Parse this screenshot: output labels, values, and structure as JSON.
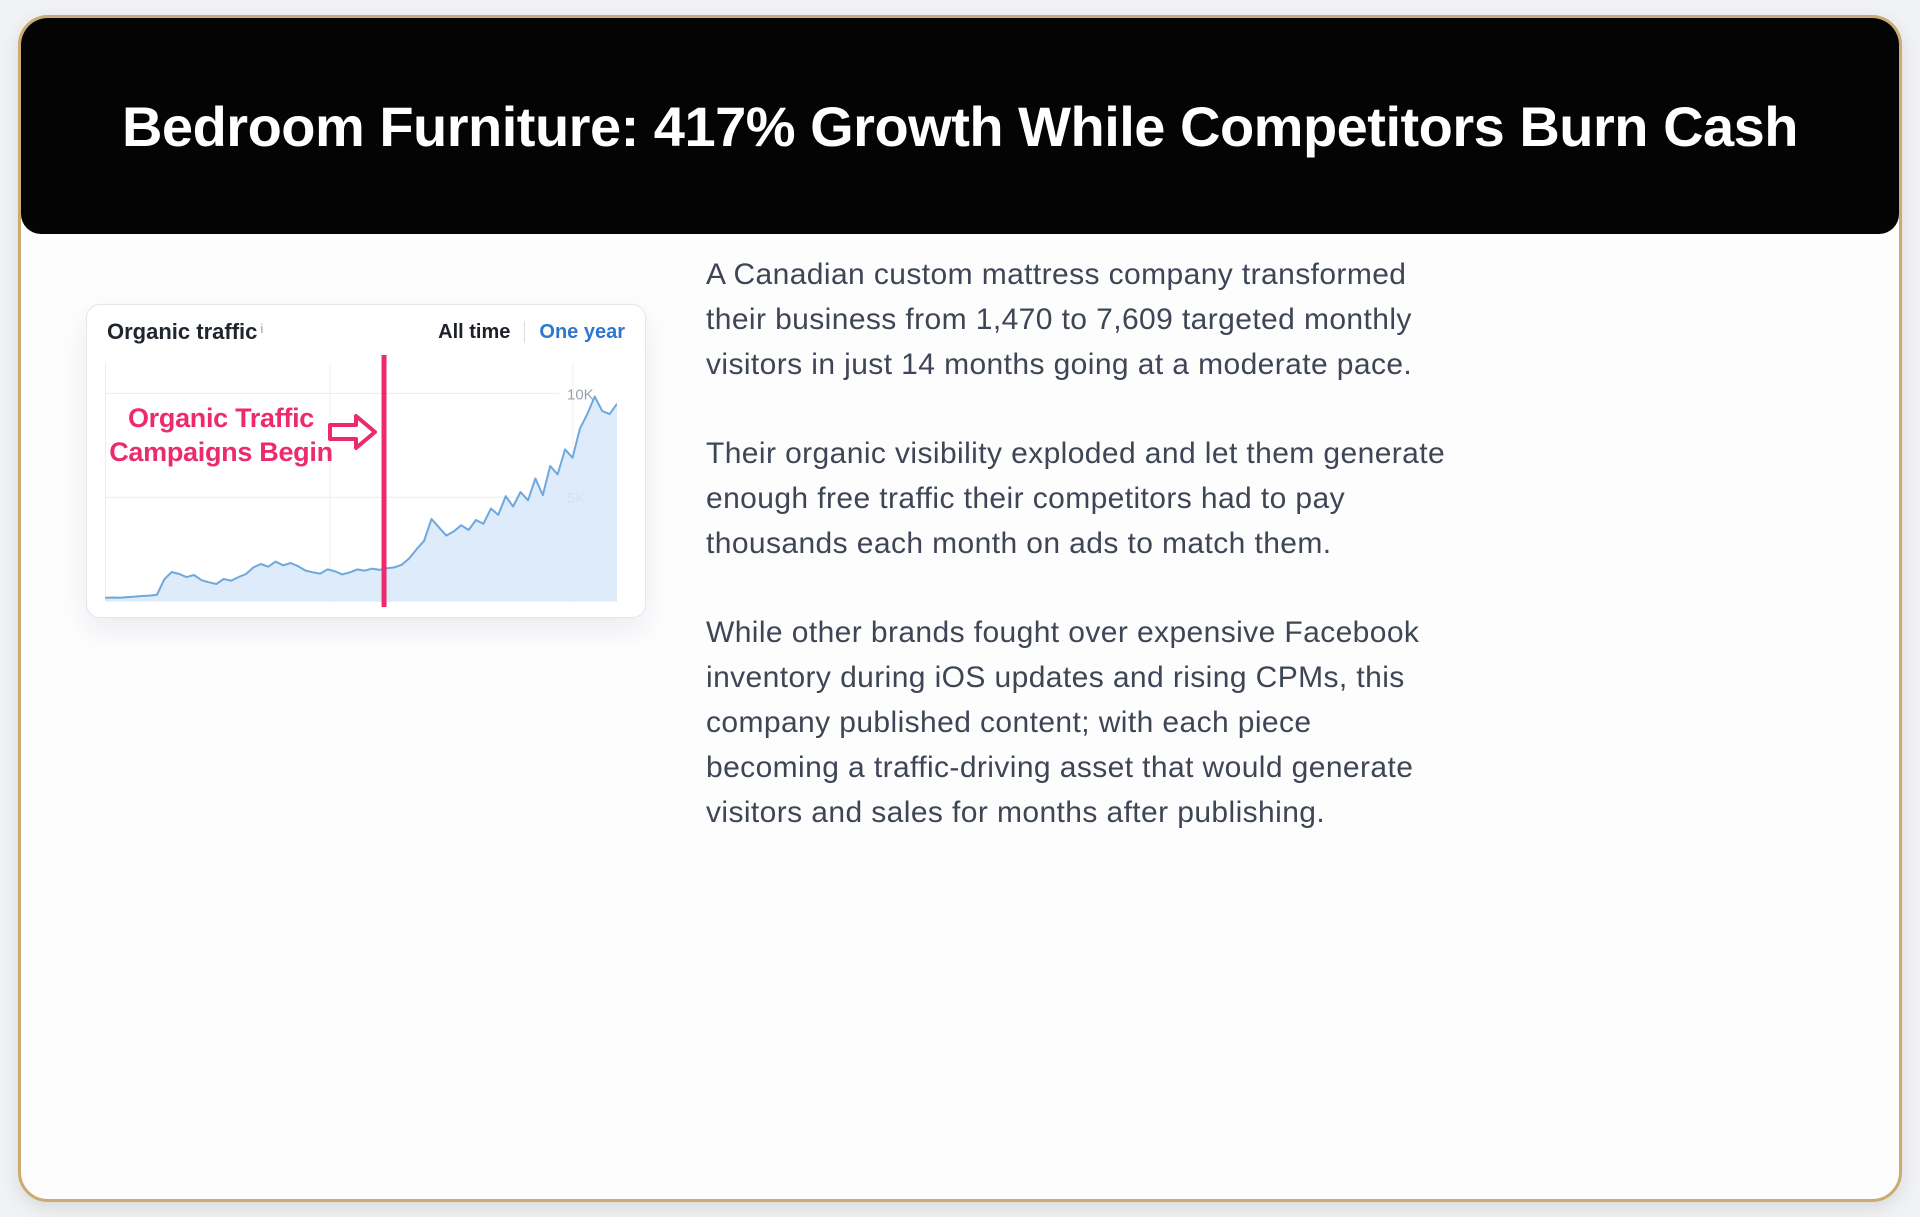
{
  "header": {
    "title": "Bedroom Furniture: 417% Growth While Competitors Burn Cash"
  },
  "chart_card": {
    "title": "Organic traffic",
    "info_icon": "i",
    "range_all_time": "All time",
    "range_one_year": "One year",
    "annotation_line1": "Organic Traffic",
    "annotation_line2": "Campaigns Begin"
  },
  "chart_data": {
    "type": "area",
    "title": "Organic traffic",
    "xlabel": "",
    "ylabel": "",
    "ylim": [
      0,
      10500
    ],
    "gridlines": [
      {
        "value": 10000,
        "label": "10K"
      },
      {
        "value": 5000,
        "label": "5K"
      }
    ],
    "legend_position": "none",
    "annotation": {
      "text": "Organic Traffic Campaigns Begin",
      "x_fraction": 0.545
    },
    "series": [
      {
        "name": "Organic traffic",
        "values": [
          150,
          170,
          160,
          190,
          210,
          240,
          260,
          300,
          1050,
          1400,
          1300,
          1150,
          1250,
          1000,
          900,
          820,
          1060,
          980,
          1150,
          1300,
          1620,
          1780,
          1650,
          1900,
          1720,
          1830,
          1680,
          1470,
          1380,
          1320,
          1520,
          1430,
          1280,
          1380,
          1520,
          1460,
          1560,
          1500,
          1580,
          1620,
          1750,
          2050,
          2500,
          2900,
          3950,
          3550,
          3150,
          3350,
          3650,
          3420,
          3900,
          3720,
          4450,
          4150,
          5050,
          4550,
          5250,
          4850,
          5900,
          5100,
          6500,
          6100,
          7300,
          6900,
          8300,
          9000,
          9850,
          9150,
          9000,
          9500
        ]
      }
    ]
  },
  "body": {
    "paragraphs": [
      "A Canadian custom mattress company transformed their business from 1,470 to 7,609 targeted monthly visitors in just 14 months going at a moderate pace.",
      "Their organic visibility exploded and let them generate enough free traffic their competitors had to pay thousands each month on ads to match them.",
      "While other brands fought over expensive Facebook inventory during iOS updates and rising CPMs, this company published content; with each piece becoming a traffic-driving asset that would generate visitors and sales for months after publishing."
    ]
  },
  "colors": {
    "accent_pink": "#ee2a6f",
    "link_blue": "#2d77d2",
    "chart_line": "#6fa8dc",
    "chart_fill": "#d9e9f9",
    "border_gold": "#cbab72",
    "header_bg": "#040404"
  }
}
